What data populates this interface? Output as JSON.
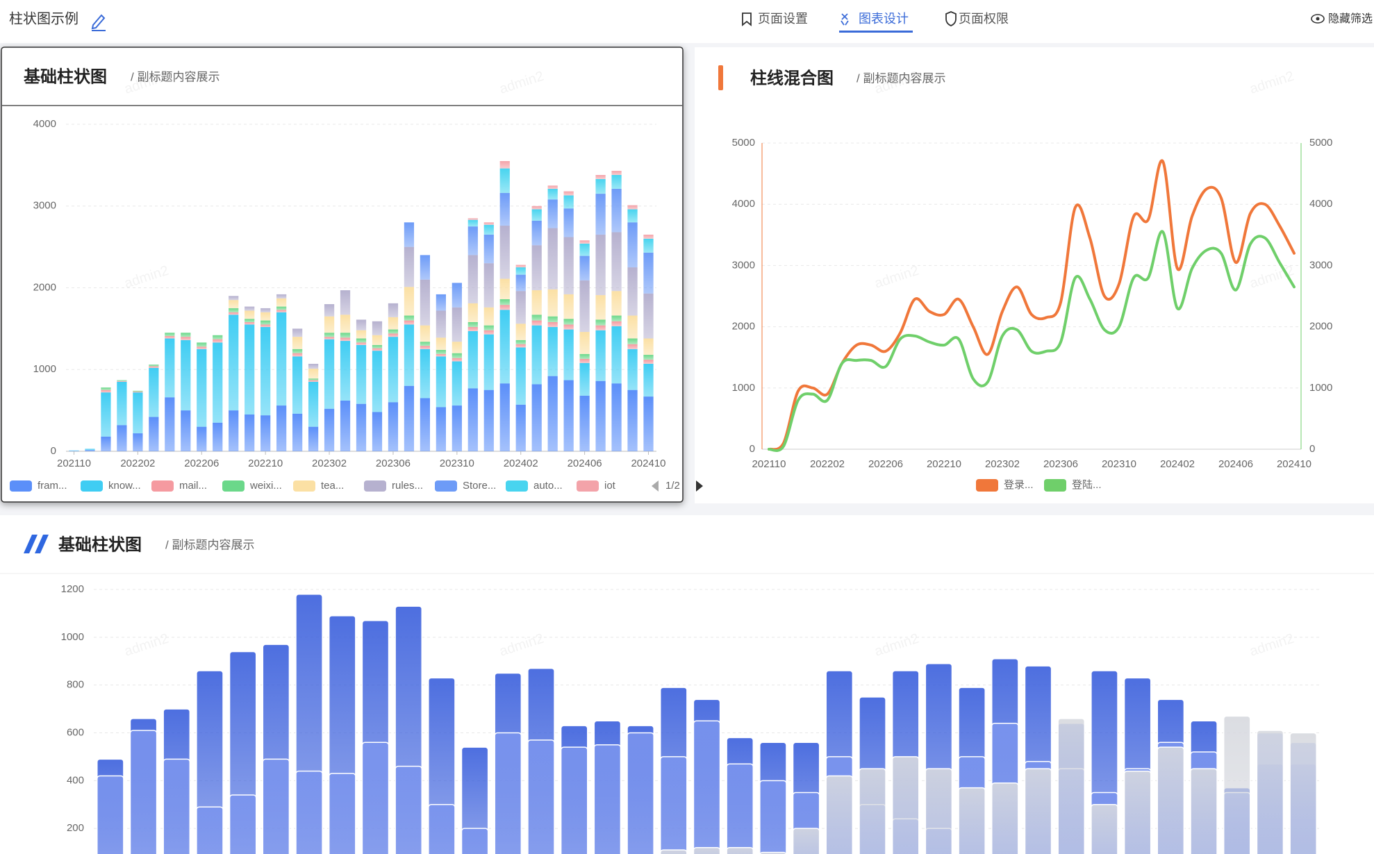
{
  "header": {
    "title": "柱状图示例",
    "tabs": [
      "页面设置",
      "图表设计",
      "页面权限"
    ],
    "active_tab": 1,
    "action": "隐藏筛选"
  },
  "watermark": "admin2",
  "chart_data": [
    {
      "type": "bar",
      "stacked": true,
      "title": "基础柱状图",
      "subtitle": "/ 副标题内容展示",
      "legend_page": "1/2",
      "categories": [
        "202110",
        null,
        null,
        null,
        "202202",
        null,
        null,
        null,
        "202206",
        null,
        null,
        null,
        "202210",
        null,
        null,
        null,
        "202302",
        null,
        null,
        null,
        "202306",
        null,
        null,
        null,
        "202310",
        null,
        null,
        null,
        "202402",
        null,
        null,
        null,
        "202406",
        null,
        null,
        null,
        "202410"
      ],
      "ylim": [
        0,
        4000
      ],
      "yticks": [
        0,
        1000,
        2000,
        3000,
        4000
      ],
      "grid": true,
      "series": [
        {
          "name": "fram...",
          "color": "#5b8ff9",
          "values": [
            5,
            15,
            180,
            320,
            220,
            420,
            660,
            500,
            300,
            350,
            500,
            450,
            440,
            560,
            460,
            300,
            520,
            620,
            580,
            480,
            600,
            800,
            650,
            540,
            560,
            770,
            750,
            830,
            570,
            820,
            920,
            870,
            680,
            860,
            830,
            750,
            670
          ]
        },
        {
          "name": "know...",
          "color": "#3fcdf3",
          "values": [
            5,
            15,
            540,
            530,
            500,
            600,
            720,
            860,
            950,
            980,
            1170,
            1100,
            1080,
            1140,
            700,
            550,
            850,
            730,
            720,
            750,
            800,
            750,
            600,
            620,
            540,
            700,
            680,
            900,
            700,
            720,
            600,
            620,
            400,
            620,
            700,
            500,
            400
          ]
        },
        {
          "name": "mail...",
          "color": "#f59aa0",
          "values": [
            0,
            0,
            30,
            10,
            10,
            20,
            30,
            40,
            30,
            40,
            30,
            30,
            30,
            30,
            40,
            20,
            30,
            40,
            30,
            30,
            40,
            50,
            40,
            30,
            40,
            50,
            50,
            60,
            40,
            60,
            60,
            60,
            50,
            60,
            60,
            60,
            50
          ]
        },
        {
          "name": "weixi...",
          "color": "#6bd88a",
          "values": [
            0,
            0,
            30,
            10,
            10,
            20,
            40,
            50,
            50,
            50,
            50,
            40,
            50,
            40,
            50,
            20,
            50,
            60,
            50,
            40,
            50,
            60,
            50,
            50,
            60,
            60,
            60,
            70,
            50,
            70,
            70,
            70,
            60,
            70,
            70,
            70,
            60
          ]
        },
        {
          "name": "tea...",
          "color": "#fbe0a4",
          "values": [
            0,
            0,
            0,
            0,
            0,
            0,
            0,
            0,
            0,
            0,
            100,
            100,
            100,
            100,
            150,
            120,
            200,
            220,
            100,
            120,
            150,
            350,
            200,
            150,
            140,
            230,
            220,
            250,
            200,
            300,
            330,
            300,
            270,
            300,
            300,
            280,
            200
          ]
        },
        {
          "name": "rules...",
          "color": "#b6b1cf",
          "values": [
            0,
            0,
            0,
            0,
            0,
            0,
            0,
            0,
            0,
            0,
            50,
            50,
            50,
            50,
            100,
            60,
            150,
            300,
            130,
            170,
            170,
            490,
            560,
            330,
            420,
            590,
            540,
            650,
            400,
            550,
            750,
            700,
            630,
            740,
            720,
            590,
            550
          ]
        },
        {
          "name": "Store...",
          "color": "#6d9bf7",
          "values": [
            0,
            0,
            0,
            0,
            0,
            0,
            0,
            0,
            0,
            0,
            0,
            0,
            0,
            0,
            0,
            0,
            0,
            0,
            0,
            0,
            0,
            300,
            300,
            200,
            300,
            350,
            350,
            400,
            200,
            300,
            350,
            350,
            300,
            500,
            530,
            550,
            500
          ]
        },
        {
          "name": "auto...",
          "color": "#48d4ef",
          "values": [
            0,
            0,
            0,
            0,
            0,
            0,
            0,
            0,
            0,
            0,
            0,
            0,
            0,
            0,
            0,
            0,
            0,
            0,
            0,
            0,
            0,
            0,
            0,
            0,
            0,
            80,
            120,
            300,
            90,
            140,
            130,
            160,
            150,
            180,
            170,
            160,
            170
          ]
        },
        {
          "name": "iot",
          "color": "#f3a3a9",
          "values": [
            0,
            0,
            0,
            0,
            0,
            0,
            0,
            0,
            0,
            0,
            0,
            0,
            0,
            0,
            0,
            0,
            0,
            0,
            0,
            0,
            0,
            0,
            0,
            0,
            0,
            20,
            30,
            90,
            30,
            40,
            40,
            50,
            40,
            50,
            50,
            50,
            50
          ]
        }
      ]
    },
    {
      "type": "line",
      "smooth": true,
      "title": "柱线混合图",
      "subtitle": "/ 副标题内容展示",
      "categories": [
        "202110",
        null,
        null,
        null,
        "202202",
        null,
        null,
        null,
        "202206",
        null,
        null,
        null,
        "202210",
        null,
        null,
        null,
        "202302",
        null,
        null,
        null,
        "202306",
        null,
        null,
        null,
        "202310",
        null,
        null,
        null,
        "202402",
        null,
        null,
        null,
        "202406",
        null,
        null,
        null,
        "202410"
      ],
      "ylim": [
        0,
        5000
      ],
      "yticks": [
        0,
        1000,
        2000,
        3000,
        4000,
        5000
      ],
      "y2lim": [
        0,
        5000
      ],
      "y2ticks": [
        0,
        1000,
        2000,
        3000,
        4000,
        5000
      ],
      "grid": true,
      "series": [
        {
          "name": "登录...",
          "color": "#f0773a",
          "values": [
            0,
            100,
            950,
            1000,
            900,
            1400,
            1700,
            1700,
            1600,
            1900,
            2450,
            2250,
            2200,
            2450,
            2000,
            1550,
            2250,
            2650,
            2200,
            2150,
            2400,
            3950,
            3450,
            2500,
            2700,
            3800,
            3750,
            4700,
            2950,
            3800,
            4250,
            4100,
            3050,
            3850,
            4000,
            3650,
            3200
          ]
        },
        {
          "name": "登陆...",
          "color": "#6fcf6a",
          "axis": "y2",
          "values": [
            0,
            50,
            800,
            900,
            800,
            1400,
            1450,
            1450,
            1350,
            1800,
            1850,
            1750,
            1700,
            1800,
            1150,
            1100,
            1850,
            1950,
            1600,
            1600,
            1750,
            2800,
            2450,
            1950,
            2000,
            2800,
            2800,
            3550,
            2300,
            2950,
            3250,
            3200,
            2600,
            3350,
            3450,
            3050,
            2650
          ]
        }
      ]
    },
    {
      "type": "bar",
      "overlap": true,
      "title": "基础柱状图",
      "subtitle": "/ 副标题内容展示",
      "ylim": [
        0,
        1200
      ],
      "yticks": [
        200,
        400,
        600,
        800,
        1000,
        1200
      ],
      "grid": true,
      "series": [
        {
          "color": "#3a5fdc",
          "values": [
            490,
            660,
            700,
            860,
            940,
            970,
            1180,
            1090,
            1070,
            1130,
            830,
            540,
            850,
            870,
            630,
            650,
            630,
            790,
            740,
            580,
            560,
            560,
            860,
            750,
            860,
            890,
            790,
            910,
            880,
            640,
            860,
            830,
            740,
            650,
            370,
            470,
            470
          ]
        },
        {
          "color": "#7a94ee",
          "values": [
            420,
            610,
            490,
            290,
            340,
            490,
            440,
            430,
            560,
            460,
            300,
            200,
            600,
            570,
            540,
            550,
            600,
            500,
            650,
            470,
            400,
            350,
            500,
            300,
            240,
            200,
            500,
            640,
            480,
            450,
            350,
            450,
            560,
            520,
            350,
            600,
            560
          ]
        },
        {
          "color": "#d7d9df",
          "values": [
            0,
            0,
            0,
            0,
            0,
            0,
            0,
            0,
            0,
            40,
            40,
            40,
            50,
            90,
            40,
            40,
            50,
            110,
            120,
            120,
            100,
            200,
            420,
            450,
            500,
            450,
            370,
            390,
            450,
            660,
            300,
            440,
            540,
            450,
            670,
            610,
            600
          ]
        }
      ]
    }
  ]
}
